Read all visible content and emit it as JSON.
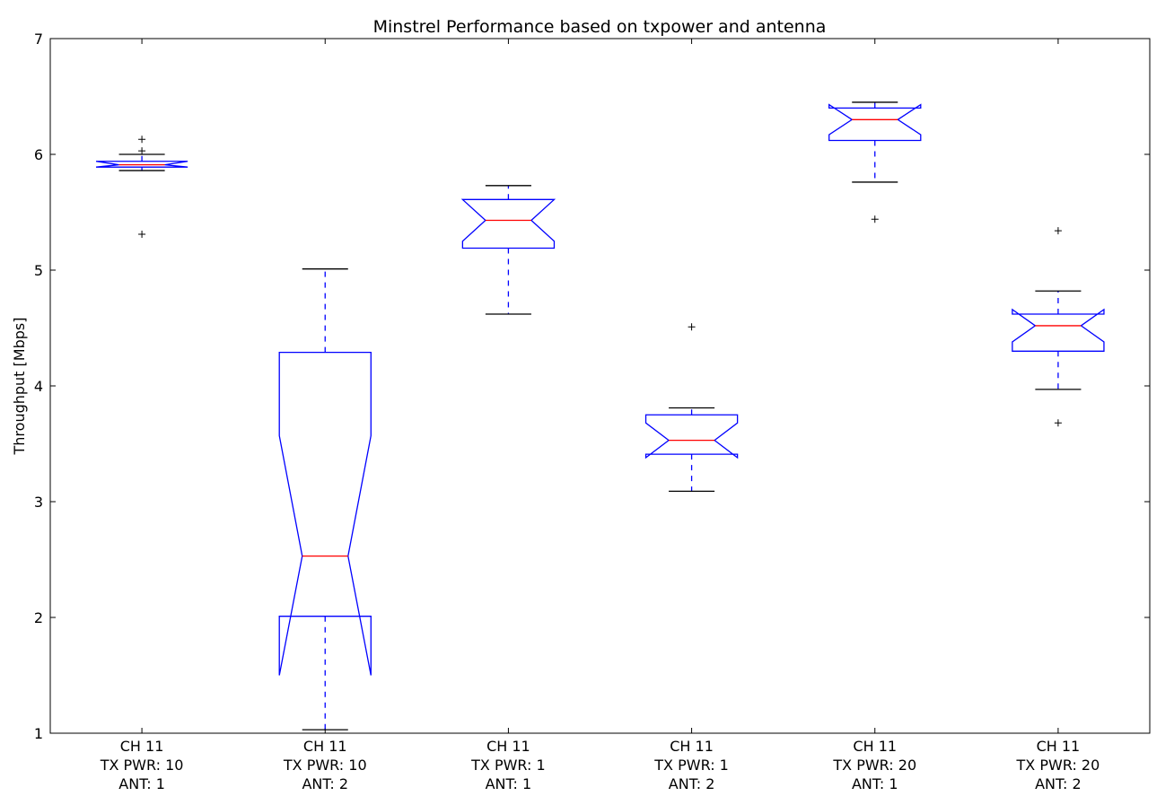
{
  "chart_data": {
    "type": "boxplot",
    "title": "Minstrel Performance based on txpower and antenna",
    "xlabel": "",
    "ylabel": "Throughput [Mbps]",
    "ylim": [
      1,
      7
    ],
    "yticks": [
      "1",
      "2",
      "3",
      "4",
      "5",
      "6",
      "7"
    ],
    "notched": true,
    "grid": false,
    "colors": {
      "box": "#0000ff",
      "median": "#ff0000",
      "whisker": "#0000ff",
      "cap": "#000000",
      "flier": "#000000"
    },
    "categories": [
      [
        "CH 11",
        "TX PWR: 10",
        "ANT: 1"
      ],
      [
        "CH 11",
        "TX PWR: 10",
        "ANT: 2"
      ],
      [
        "CH 11",
        "TX PWR: 1",
        "ANT: 1"
      ],
      [
        "CH 11",
        "TX PWR: 1",
        "ANT: 2"
      ],
      [
        "CH 11",
        "TX PWR: 20",
        "ANT: 1"
      ],
      [
        "CH 11",
        "TX PWR: 20",
        "ANT: 2"
      ]
    ],
    "boxes": [
      {
        "whisker_low": 5.86,
        "q1": 5.89,
        "median": 5.91,
        "q3": 5.94,
        "whisker_high": 6.0,
        "notch_low": 5.89,
        "notch_high": 5.94,
        "fliers": [
          6.13,
          6.03,
          5.31
        ]
      },
      {
        "whisker_low": 1.03,
        "q1": 2.01,
        "median": 2.53,
        "q3": 4.29,
        "whisker_high": 5.01,
        "notch_low": 1.5,
        "notch_high": 3.57,
        "fliers": []
      },
      {
        "whisker_low": 4.62,
        "q1": 5.19,
        "median": 5.43,
        "q3": 5.61,
        "whisker_high": 5.73,
        "notch_low": 5.25,
        "notch_high": 5.61,
        "fliers": []
      },
      {
        "whisker_low": 3.09,
        "q1": 3.41,
        "median": 3.53,
        "q3": 3.75,
        "whisker_high": 3.81,
        "notch_low": 3.38,
        "notch_high": 3.68,
        "fliers": [
          4.51
        ]
      },
      {
        "whisker_low": 5.76,
        "q1": 6.12,
        "median": 6.3,
        "q3": 6.4,
        "whisker_high": 6.45,
        "notch_low": 6.17,
        "notch_high": 6.43,
        "fliers": [
          5.44
        ]
      },
      {
        "whisker_low": 3.97,
        "q1": 4.3,
        "median": 4.52,
        "q3": 4.62,
        "whisker_high": 4.82,
        "notch_low": 4.38,
        "notch_high": 4.66,
        "fliers": [
          5.34,
          3.68
        ]
      }
    ]
  }
}
